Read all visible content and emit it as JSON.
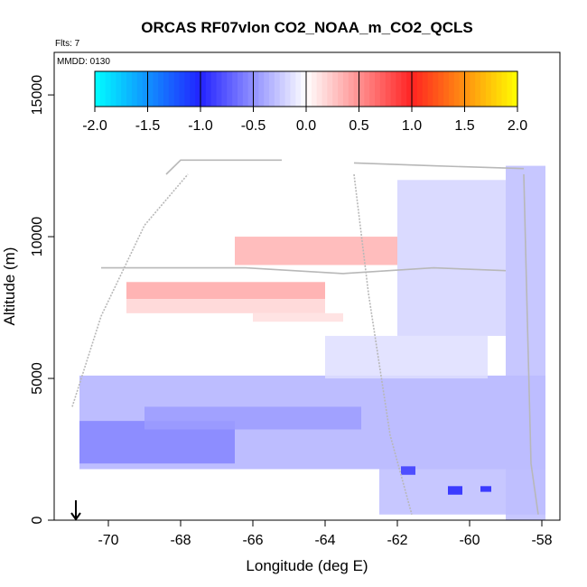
{
  "chart_data": {
    "type": "heatmap",
    "title": "ORCAS RF07vlon CO2_NOAA_m_CO2_QCLS",
    "subtitle_flights": "Flts: 7",
    "subtitle_date": "MMDD: 0130",
    "xlabel": "Longitude (deg E)",
    "ylabel": "Altitude (m)",
    "xlim": [
      -71.5,
      -57.5
    ],
    "ylim": [
      0,
      16500
    ],
    "xticks": [
      -70,
      -68,
      -66,
      -64,
      -62,
      -60,
      -58
    ],
    "yticks": [
      0,
      5000,
      10000,
      15000
    ],
    "colorbar": {
      "range": [
        -2.0,
        2.0
      ],
      "ticks": [
        -2.0,
        -1.5,
        -1.0,
        -0.5,
        0.0,
        0.5,
        1.0,
        1.5,
        2.0
      ],
      "colors": [
        "#00ffff",
        "#2222ff",
        "#ffffff",
        "#ff2222",
        "#ffff00"
      ]
    },
    "marker": {
      "lon": -70.9,
      "alt": 0,
      "symbol": "down-arrow"
    },
    "regions": [
      {
        "lon": [
          -70.8,
          -57.9
        ],
        "alt": [
          1800,
          5100
        ],
        "value": -0.35
      },
      {
        "lon": [
          -70.8,
          -66.5
        ],
        "alt": [
          2000,
          3500
        ],
        "value": -0.55
      },
      {
        "lon": [
          -69.0,
          -63.0
        ],
        "alt": [
          3200,
          4000
        ],
        "value": -0.45
      },
      {
        "lon": [
          -59.0,
          -57.9
        ],
        "alt": [
          0,
          12500
        ],
        "value": -0.3
      },
      {
        "lon": [
          -62.0,
          -59.0
        ],
        "alt": [
          6500,
          12000
        ],
        "value": -0.2
      },
      {
        "lon": [
          -64.0,
          -59.5
        ],
        "alt": [
          5000,
          6500
        ],
        "value": -0.15
      },
      {
        "lon": [
          -62.5,
          -57.9
        ],
        "alt": [
          200,
          2000
        ],
        "value": -0.3
      },
      {
        "lon": [
          -60.6,
          -60.2
        ],
        "alt": [
          900,
          1200
        ],
        "value": -1.0
      },
      {
        "lon": [
          -59.7,
          -59.4
        ],
        "alt": [
          1000,
          1200
        ],
        "value": -1.0
      },
      {
        "lon": [
          -61.9,
          -61.5
        ],
        "alt": [
          1600,
          1900
        ],
        "value": -0.9
      },
      {
        "lon": [
          -66.5,
          -62.0
        ],
        "alt": [
          9000,
          10000
        ],
        "value": 0.35
      },
      {
        "lon": [
          -69.5,
          -64.0
        ],
        "alt": [
          7800,
          8400
        ],
        "value": 0.4
      },
      {
        "lon": [
          -69.5,
          -64.0
        ],
        "alt": [
          7300,
          7800
        ],
        "value": 0.2
      },
      {
        "lon": [
          -66.0,
          -63.5
        ],
        "alt": [
          7000,
          7300
        ],
        "value": 0.15
      }
    ],
    "flight_tracks": [
      {
        "name": "track-upper-left",
        "points": [
          [
            -68.4,
            12200
          ],
          [
            -68.0,
            12700
          ],
          [
            -65.2,
            12700
          ]
        ]
      },
      {
        "name": "track-upper-right",
        "points": [
          [
            -63.2,
            12600
          ],
          [
            -61.0,
            12500
          ],
          [
            -58.5,
            12400
          ]
        ]
      },
      {
        "name": "track-mid",
        "points": [
          [
            -70.2,
            8900
          ],
          [
            -66.2,
            8900
          ],
          [
            -63.5,
            8700
          ],
          [
            -61.0,
            8900
          ],
          [
            -59.0,
            8800
          ]
        ]
      },
      {
        "name": "track-climb-left",
        "points": [
          [
            -71.0,
            4000
          ],
          [
            -70.2,
            7200
          ],
          [
            -69.0,
            10400
          ],
          [
            -67.8,
            12200
          ]
        ]
      },
      {
        "name": "track-right-descent",
        "points": [
          [
            -63.2,
            12200
          ],
          [
            -62.8,
            8000
          ],
          [
            -62.2,
            3000
          ],
          [
            -61.6,
            200
          ]
        ]
      },
      {
        "name": "track-far-right",
        "points": [
          [
            -58.5,
            12200
          ],
          [
            -58.4,
            7000
          ],
          [
            -58.3,
            2000
          ],
          [
            -58.1,
            200
          ]
        ]
      }
    ]
  }
}
